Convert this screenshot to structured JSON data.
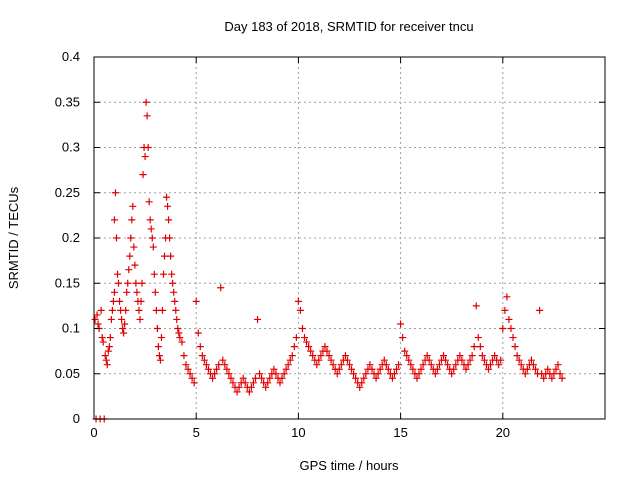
{
  "chart_data": {
    "type": "scatter",
    "title": "Day 183 of 2018, SRMTID for receiver tncu",
    "xlabel": "GPS time / hours",
    "ylabel": "SRMTID / TECUs",
    "xlim": [
      0,
      25
    ],
    "ylim": [
      0,
      0.4
    ],
    "xticks": [
      0,
      5,
      10,
      15,
      20
    ],
    "yticks": [
      0,
      0.05,
      0.1,
      0.15,
      0.2,
      0.25,
      0.3,
      0.35,
      0.4
    ],
    "xtick_labels": [
      "0",
      "5",
      "10",
      "15",
      "20"
    ],
    "ytick_labels": [
      "0",
      "0.05",
      "0.1",
      "0.15",
      "0.2",
      "0.25",
      "0.3",
      "0.35",
      "0.4"
    ],
    "grid": true,
    "marker": "+",
    "color": "#e00000",
    "series": [
      {
        "points": [
          [
            0.05,
            0.11
          ],
          [
            0.1,
            0.0
          ],
          [
            0.15,
            0.115
          ],
          [
            0.2,
            0.105
          ],
          [
            0.25,
            0.1
          ],
          [
            0.3,
            0.0
          ],
          [
            0.35,
            0.12
          ],
          [
            0.4,
            0.09
          ],
          [
            0.45,
            0.085
          ],
          [
            0.5,
            0.0
          ],
          [
            0.55,
            0.07
          ],
          [
            0.6,
            0.065
          ],
          [
            0.65,
            0.06
          ],
          [
            0.7,
            0.075
          ],
          [
            0.75,
            0.08
          ],
          [
            0.8,
            0.09
          ],
          [
            0.85,
            0.11
          ],
          [
            0.9,
            0.12
          ],
          [
            0.95,
            0.13
          ],
          [
            1.0,
            0.14
          ],
          [
            1.0,
            0.22
          ],
          [
            1.05,
            0.25
          ],
          [
            1.1,
            0.2
          ],
          [
            1.15,
            0.16
          ],
          [
            1.2,
            0.15
          ],
          [
            1.25,
            0.13
          ],
          [
            1.3,
            0.12
          ],
          [
            1.35,
            0.11
          ],
          [
            1.4,
            0.1
          ],
          [
            1.45,
            0.095
          ],
          [
            1.5,
            0.105
          ],
          [
            1.55,
            0.12
          ],
          [
            1.6,
            0.14
          ],
          [
            1.65,
            0.15
          ],
          [
            1.7,
            0.165
          ],
          [
            1.75,
            0.18
          ],
          [
            1.8,
            0.2
          ],
          [
            1.85,
            0.22
          ],
          [
            1.9,
            0.235
          ],
          [
            1.95,
            0.19
          ],
          [
            2.0,
            0.17
          ],
          [
            2.05,
            0.15
          ],
          [
            2.1,
            0.14
          ],
          [
            2.15,
            0.13
          ],
          [
            2.2,
            0.12
          ],
          [
            2.25,
            0.11
          ],
          [
            2.3,
            0.13
          ],
          [
            2.35,
            0.15
          ],
          [
            2.4,
            0.27
          ],
          [
            2.45,
            0.3
          ],
          [
            2.5,
            0.29
          ],
          [
            2.55,
            0.35
          ],
          [
            2.6,
            0.335
          ],
          [
            2.65,
            0.3
          ],
          [
            2.7,
            0.24
          ],
          [
            2.75,
            0.22
          ],
          [
            2.8,
            0.21
          ],
          [
            2.85,
            0.2
          ],
          [
            2.9,
            0.19
          ],
          [
            2.95,
            0.16
          ],
          [
            3.0,
            0.14
          ],
          [
            3.05,
            0.12
          ],
          [
            3.1,
            0.1
          ],
          [
            3.15,
            0.08
          ],
          [
            3.2,
            0.07
          ],
          [
            3.25,
            0.065
          ],
          [
            3.3,
            0.09
          ],
          [
            3.35,
            0.12
          ],
          [
            3.4,
            0.16
          ],
          [
            3.45,
            0.18
          ],
          [
            3.5,
            0.2
          ],
          [
            3.55,
            0.245
          ],
          [
            3.6,
            0.235
          ],
          [
            3.65,
            0.22
          ],
          [
            3.7,
            0.2
          ],
          [
            3.75,
            0.18
          ],
          [
            3.8,
            0.16
          ],
          [
            3.85,
            0.15
          ],
          [
            3.9,
            0.14
          ],
          [
            3.95,
            0.13
          ],
          [
            4.0,
            0.12
          ],
          [
            4.05,
            0.11
          ],
          [
            4.1,
            0.1
          ],
          [
            4.15,
            0.095
          ],
          [
            4.2,
            0.09
          ],
          [
            4.3,
            0.085
          ],
          [
            4.4,
            0.07
          ],
          [
            4.5,
            0.06
          ],
          [
            4.6,
            0.055
          ],
          [
            4.7,
            0.05
          ],
          [
            4.8,
            0.045
          ],
          [
            4.9,
            0.04
          ],
          [
            5.0,
            0.13
          ],
          [
            5.1,
            0.095
          ],
          [
            5.2,
            0.08
          ],
          [
            5.3,
            0.07
          ],
          [
            5.4,
            0.065
          ],
          [
            5.5,
            0.06
          ],
          [
            5.6,
            0.055
          ],
          [
            5.7,
            0.05
          ],
          [
            5.8,
            0.045
          ],
          [
            5.9,
            0.05
          ],
          [
            6.0,
            0.055
          ],
          [
            6.1,
            0.06
          ],
          [
            6.2,
            0.145
          ],
          [
            6.3,
            0.065
          ],
          [
            6.4,
            0.06
          ],
          [
            6.5,
            0.055
          ],
          [
            6.6,
            0.05
          ],
          [
            6.7,
            0.045
          ],
          [
            6.8,
            0.04
          ],
          [
            6.9,
            0.035
          ],
          [
            7.0,
            0.03
          ],
          [
            7.1,
            0.035
          ],
          [
            7.2,
            0.04
          ],
          [
            7.3,
            0.045
          ],
          [
            7.4,
            0.04
          ],
          [
            7.5,
            0.035
          ],
          [
            7.6,
            0.03
          ],
          [
            7.7,
            0.035
          ],
          [
            7.8,
            0.04
          ],
          [
            7.9,
            0.045
          ],
          [
            8.0,
            0.11
          ],
          [
            8.1,
            0.05
          ],
          [
            8.2,
            0.045
          ],
          [
            8.3,
            0.04
          ],
          [
            8.4,
            0.035
          ],
          [
            8.5,
            0.04
          ],
          [
            8.6,
            0.045
          ],
          [
            8.7,
            0.05
          ],
          [
            8.8,
            0.055
          ],
          [
            8.9,
            0.05
          ],
          [
            9.0,
            0.045
          ],
          [
            9.1,
            0.04
          ],
          [
            9.2,
            0.045
          ],
          [
            9.3,
            0.05
          ],
          [
            9.4,
            0.055
          ],
          [
            9.5,
            0.06
          ],
          [
            9.6,
            0.065
          ],
          [
            9.7,
            0.07
          ],
          [
            9.8,
            0.08
          ],
          [
            9.9,
            0.09
          ],
          [
            10.0,
            0.13
          ],
          [
            10.1,
            0.12
          ],
          [
            10.2,
            0.1
          ],
          [
            10.3,
            0.09
          ],
          [
            10.4,
            0.085
          ],
          [
            10.5,
            0.08
          ],
          [
            10.6,
            0.075
          ],
          [
            10.7,
            0.07
          ],
          [
            10.8,
            0.065
          ],
          [
            10.9,
            0.06
          ],
          [
            11.0,
            0.065
          ],
          [
            11.1,
            0.07
          ],
          [
            11.2,
            0.075
          ],
          [
            11.3,
            0.08
          ],
          [
            11.4,
            0.075
          ],
          [
            11.5,
            0.07
          ],
          [
            11.6,
            0.065
          ],
          [
            11.7,
            0.06
          ],
          [
            11.8,
            0.055
          ],
          [
            11.9,
            0.05
          ],
          [
            12.0,
            0.055
          ],
          [
            12.1,
            0.06
          ],
          [
            12.2,
            0.065
          ],
          [
            12.3,
            0.07
          ],
          [
            12.4,
            0.065
          ],
          [
            12.5,
            0.06
          ],
          [
            12.6,
            0.055
          ],
          [
            12.7,
            0.05
          ],
          [
            12.8,
            0.045
          ],
          [
            12.9,
            0.04
          ],
          [
            13.0,
            0.035
          ],
          [
            13.1,
            0.04
          ],
          [
            13.2,
            0.045
          ],
          [
            13.3,
            0.05
          ],
          [
            13.4,
            0.055
          ],
          [
            13.5,
            0.06
          ],
          [
            13.6,
            0.055
          ],
          [
            13.7,
            0.05
          ],
          [
            13.8,
            0.045
          ],
          [
            13.9,
            0.05
          ],
          [
            14.0,
            0.055
          ],
          [
            14.1,
            0.06
          ],
          [
            14.2,
            0.065
          ],
          [
            14.3,
            0.06
          ],
          [
            14.4,
            0.055
          ],
          [
            14.5,
            0.05
          ],
          [
            14.6,
            0.045
          ],
          [
            14.7,
            0.05
          ],
          [
            14.8,
            0.055
          ],
          [
            14.9,
            0.06
          ],
          [
            15.0,
            0.105
          ],
          [
            15.1,
            0.09
          ],
          [
            15.2,
            0.075
          ],
          [
            15.3,
            0.07
          ],
          [
            15.4,
            0.065
          ],
          [
            15.5,
            0.06
          ],
          [
            15.6,
            0.055
          ],
          [
            15.7,
            0.05
          ],
          [
            15.8,
            0.045
          ],
          [
            15.9,
            0.05
          ],
          [
            16.0,
            0.055
          ],
          [
            16.1,
            0.06
          ],
          [
            16.2,
            0.065
          ],
          [
            16.3,
            0.07
          ],
          [
            16.4,
            0.065
          ],
          [
            16.5,
            0.06
          ],
          [
            16.6,
            0.055
          ],
          [
            16.7,
            0.05
          ],
          [
            16.8,
            0.055
          ],
          [
            16.9,
            0.06
          ],
          [
            17.0,
            0.065
          ],
          [
            17.1,
            0.07
          ],
          [
            17.2,
            0.065
          ],
          [
            17.3,
            0.06
          ],
          [
            17.4,
            0.055
          ],
          [
            17.5,
            0.05
          ],
          [
            17.6,
            0.055
          ],
          [
            17.7,
            0.06
          ],
          [
            17.8,
            0.065
          ],
          [
            17.9,
            0.07
          ],
          [
            18.0,
            0.065
          ],
          [
            18.1,
            0.06
          ],
          [
            18.2,
            0.055
          ],
          [
            18.3,
            0.06
          ],
          [
            18.4,
            0.065
          ],
          [
            18.5,
            0.07
          ],
          [
            18.6,
            0.08
          ],
          [
            18.7,
            0.125
          ],
          [
            18.8,
            0.09
          ],
          [
            18.9,
            0.08
          ],
          [
            19.0,
            0.07
          ],
          [
            19.1,
            0.065
          ],
          [
            19.2,
            0.06
          ],
          [
            19.3,
            0.055
          ],
          [
            19.4,
            0.06
          ],
          [
            19.5,
            0.065
          ],
          [
            19.6,
            0.07
          ],
          [
            19.7,
            0.065
          ],
          [
            19.8,
            0.06
          ],
          [
            19.9,
            0.065
          ],
          [
            20.0,
            0.1
          ],
          [
            20.1,
            0.12
          ],
          [
            20.2,
            0.135
          ],
          [
            20.3,
            0.11
          ],
          [
            20.4,
            0.1
          ],
          [
            20.5,
            0.09
          ],
          [
            20.6,
            0.08
          ],
          [
            20.7,
            0.07
          ],
          [
            20.8,
            0.065
          ],
          [
            20.9,
            0.06
          ],
          [
            21.0,
            0.055
          ],
          [
            21.1,
            0.05
          ],
          [
            21.2,
            0.055
          ],
          [
            21.3,
            0.06
          ],
          [
            21.4,
            0.065
          ],
          [
            21.5,
            0.06
          ],
          [
            21.6,
            0.055
          ],
          [
            21.7,
            0.05
          ],
          [
            21.8,
            0.12
          ],
          [
            21.9,
            0.05
          ],
          [
            22.0,
            0.045
          ],
          [
            22.1,
            0.05
          ],
          [
            22.2,
            0.055
          ],
          [
            22.3,
            0.05
          ],
          [
            22.4,
            0.045
          ],
          [
            22.5,
            0.05
          ],
          [
            22.6,
            0.055
          ],
          [
            22.7,
            0.06
          ],
          [
            22.8,
            0.05
          ],
          [
            22.9,
            0.045
          ]
        ]
      }
    ]
  }
}
